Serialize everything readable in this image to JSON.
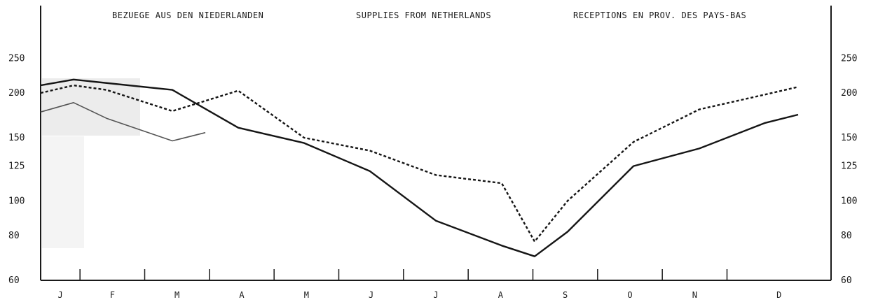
{
  "chart_data": {
    "type": "line",
    "titles": [
      "BEZUEGE AUS DEN NIEDERLANDEN",
      "SUPPLIES FROM NETHERLANDS",
      "RECEPTIONS EN PROV. DES PAYS-BAS"
    ],
    "categories": [
      "J",
      "F",
      "M",
      "A",
      "M",
      "J",
      "J",
      "A",
      "S",
      "O",
      "N",
      "D"
    ],
    "y_scale": "log",
    "ylim": [
      60,
      300
    ],
    "y_ticks": [
      60,
      80,
      100,
      125,
      150,
      200,
      250
    ],
    "grid": false,
    "series": [
      {
        "style": "solid",
        "x": [
          0,
          0.5,
          2,
          3,
          4,
          5,
          6,
          7,
          7.5,
          8,
          9,
          10,
          11,
          11.5
        ],
        "values": [
          210,
          218,
          204,
          160,
          145,
          121,
          88,
          75,
          70,
          82,
          125,
          140,
          165,
          174
        ]
      },
      {
        "style": "dotted",
        "x": [
          0,
          0.5,
          1,
          2,
          3,
          4,
          5,
          6,
          7,
          7.5,
          8,
          9,
          10,
          11,
          11.5
        ],
        "values": [
          200,
          210,
          204,
          178,
          203,
          150,
          138,
          118,
          112,
          77,
          100,
          146,
          180,
          198,
          208
        ]
      },
      {
        "style": "thin",
        "x": [
          0,
          0.5,
          1,
          2,
          2.5
        ],
        "values": [
          177,
          188,
          170,
          147,
          155
        ]
      }
    ]
  }
}
